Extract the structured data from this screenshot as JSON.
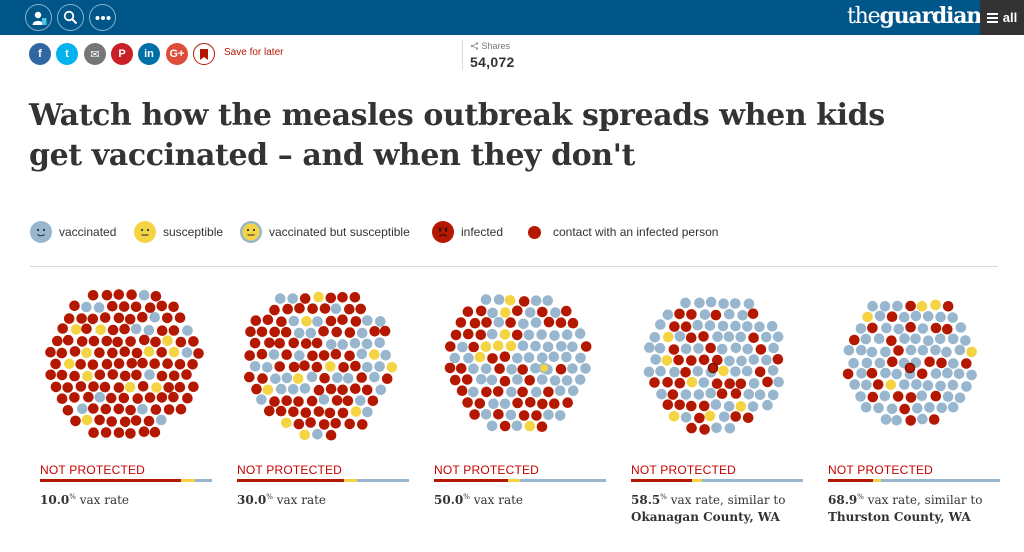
{
  "colors": {
    "topbar": "#005689",
    "infected": "#b51800",
    "susceptible": "#f5d443",
    "vaccinated": "#98b6cd"
  },
  "topbar": {
    "brand_prefix": "the",
    "brand_name": "guardian",
    "all_label": "all",
    "icons": [
      "profile-icon",
      "search-icon",
      "more-icon"
    ]
  },
  "share": {
    "buttons": [
      {
        "name": "facebook",
        "label": "f",
        "color": "#3067a3"
      },
      {
        "name": "twitter",
        "label": "t",
        "color": "#03b3ee"
      },
      {
        "name": "email",
        "label": "✉",
        "color": "#767676"
      },
      {
        "name": "pinterest",
        "label": "P",
        "color": "#cb1f27"
      },
      {
        "name": "linkedin",
        "label": "in",
        "color": "#006fa6"
      },
      {
        "name": "google-plus",
        "label": "G+",
        "color": "#dd4b39"
      }
    ],
    "save_label": "Save for later",
    "shares_label": "Shares",
    "shares_count": "54,072"
  },
  "headline": "Watch how the measles outbreak spreads when kids get vaccinated – and when they don't",
  "legend": [
    {
      "key": "vaccinated",
      "label": "vaccinated"
    },
    {
      "key": "susceptible",
      "label": "susceptible"
    },
    {
      "key": "vacc-susceptible",
      "label": "vaccinated but susceptible"
    },
    {
      "key": "infected",
      "label": "infected"
    },
    {
      "key": "contact",
      "label": "contact with an infected person"
    }
  ],
  "panels": [
    {
      "status": "NOT PROTECTED",
      "rate": "10.0",
      "pct": "%",
      "suffix": " vax rate",
      "place": "",
      "vax_fraction": 0.1,
      "susceptible_fraction": 0.08,
      "infected_fraction": 0.82
    },
    {
      "status": "NOT PROTECTED",
      "rate": "30.0",
      "pct": "%",
      "suffix": " vax rate",
      "place": "",
      "vax_fraction": 0.3,
      "susceptible_fraction": 0.08,
      "infected_fraction": 0.62
    },
    {
      "status": "NOT PROTECTED",
      "rate": "50.0",
      "pct": "%",
      "suffix": " vax rate",
      "place": "",
      "vax_fraction": 0.5,
      "susceptible_fraction": 0.07,
      "infected_fraction": 0.43
    },
    {
      "status": "NOT PROTECTED",
      "rate": "58.5",
      "pct": "%",
      "suffix": " vax rate, similar to",
      "place": "Okanagan County, WA",
      "vax_fraction": 0.585,
      "susceptible_fraction": 0.06,
      "infected_fraction": 0.355
    },
    {
      "status": "NOT PROTECTED",
      "rate": "68.9",
      "pct": "%",
      "suffix": " vax rate, similar to",
      "place": "Thurston County, WA",
      "vax_fraction": 0.689,
      "susceptible_fraction": 0.05,
      "infected_fraction": 0.261
    }
  ]
}
